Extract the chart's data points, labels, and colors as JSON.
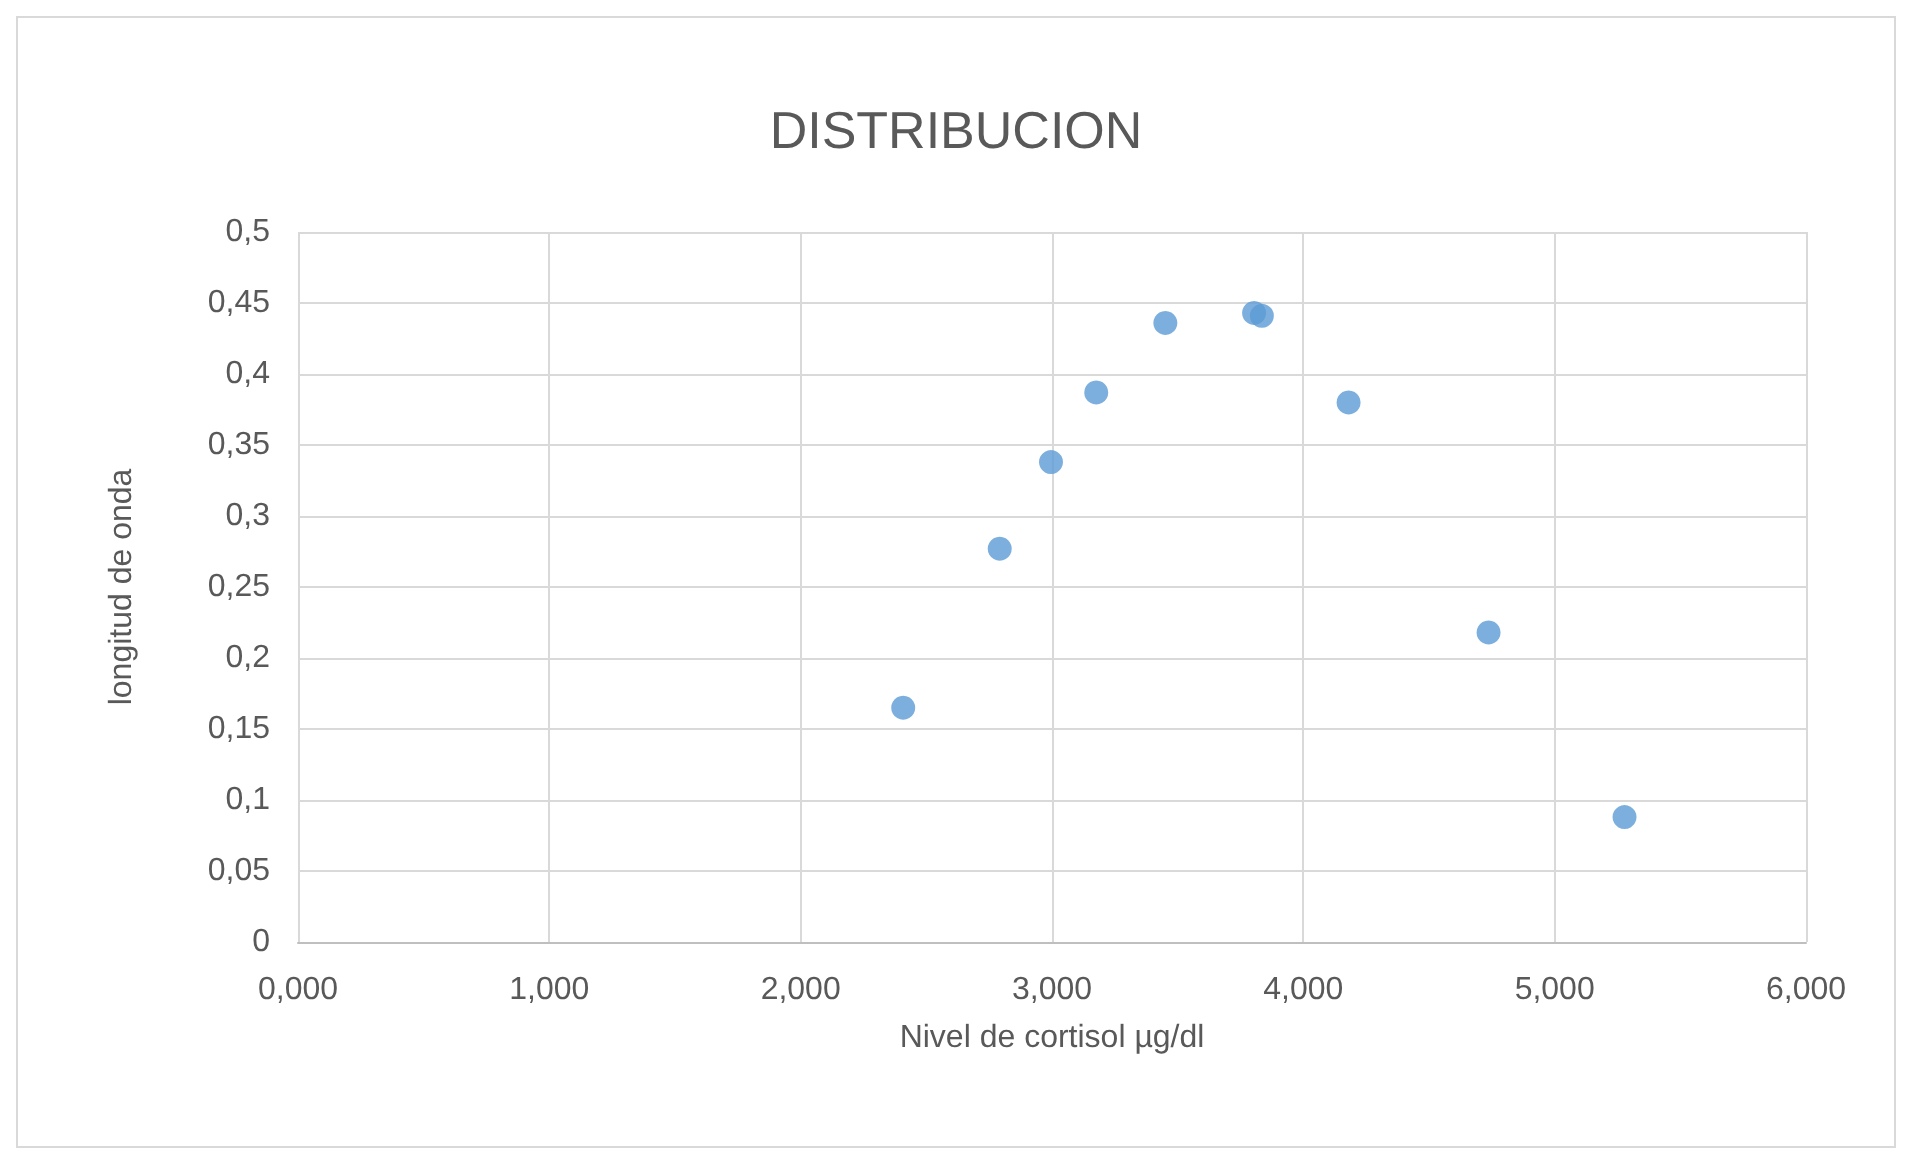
{
  "chart_data": {
    "type": "scatter",
    "title": "DISTRIBUCION",
    "xlabel": "Nivel de cortisol µg/dl",
    "ylabel": "longitud de onda",
    "x": [
      2.408,
      2.792,
      2.996,
      3.176,
      3.451,
      3.804,
      3.835,
      4.18,
      4.737,
      5.278
    ],
    "series": [
      {
        "color": "#5b9bd5",
        "values": [
          0.165,
          0.277,
          0.338,
          0.387,
          0.436,
          0.443,
          0.441,
          0.38,
          0.218,
          0.088
        ]
      }
    ],
    "xlim": [
      0,
      6
    ],
    "xticks": [
      {
        "value": 0,
        "label": "0,000"
      },
      {
        "value": 1,
        "label": "1,000"
      },
      {
        "value": 2,
        "label": "2,000"
      },
      {
        "value": 3,
        "label": "3,000"
      },
      {
        "value": 4,
        "label": "4,000"
      },
      {
        "value": 5,
        "label": "5,000"
      },
      {
        "value": 6,
        "label": "6,000"
      }
    ],
    "ylim": [
      0,
      0.5
    ],
    "yticks": [
      0,
      {
        "value": 0.05,
        "label": "0,05"
      },
      {
        "value": 0.1,
        "label": "0,1"
      },
      {
        "value": 0.15,
        "label": "0,15"
      },
      {
        "value": 0.2,
        "label": "0,2"
      },
      {
        "value": 0.25,
        "label": "0,25"
      },
      {
        "value": 0.3,
        "label": "0,3"
      },
      {
        "value": 0.35,
        "label": "0,35"
      },
      {
        "value": 0.4,
        "label": "0,4"
      },
      {
        "value": 0.45,
        "label": "0,45"
      },
      {
        "value": 0.5,
        "label": "0,5"
      }
    ],
    "grid": true,
    "marker": "circle"
  }
}
